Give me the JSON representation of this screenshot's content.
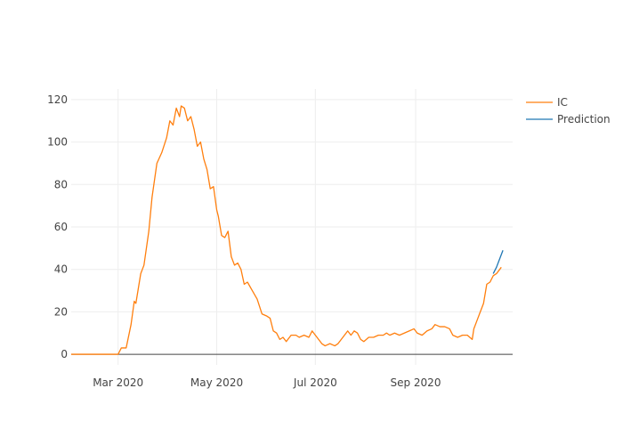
{
  "chart_data": {
    "type": "line",
    "title": "",
    "xlabel": "",
    "ylabel": "",
    "xlim": [
      "2020-02-01",
      "2020-10-31"
    ],
    "ylim": [
      -5,
      125
    ],
    "grid": true,
    "legend_position": "top-right",
    "x_ticks": [
      {
        "date": "2020-03-01",
        "label": "Mar 2020"
      },
      {
        "date": "2020-05-01",
        "label": "May 2020"
      },
      {
        "date": "2020-07-01",
        "label": "Jul 2020"
      },
      {
        "date": "2020-09-01",
        "label": "Sep 2020"
      }
    ],
    "y_ticks": [
      0,
      20,
      40,
      60,
      80,
      100,
      120
    ],
    "series": [
      {
        "name": "IC",
        "color": "#ff7f0e",
        "points": [
          [
            "2020-02-01",
            0
          ],
          [
            "2020-02-20",
            0
          ],
          [
            "2020-03-01",
            0
          ],
          [
            "2020-03-03",
            3
          ],
          [
            "2020-03-06",
            3
          ],
          [
            "2020-03-09",
            14
          ],
          [
            "2020-03-11",
            25
          ],
          [
            "2020-03-12",
            24
          ],
          [
            "2020-03-15",
            38
          ],
          [
            "2020-03-17",
            42
          ],
          [
            "2020-03-20",
            58
          ],
          [
            "2020-03-22",
            74
          ],
          [
            "2020-03-25",
            90
          ],
          [
            "2020-03-28",
            95
          ],
          [
            "2020-03-31",
            102
          ],
          [
            "2020-04-02",
            110
          ],
          [
            "2020-04-04",
            108
          ],
          [
            "2020-04-06",
            116
          ],
          [
            "2020-04-08",
            112
          ],
          [
            "2020-04-09",
            117
          ],
          [
            "2020-04-11",
            116
          ],
          [
            "2020-04-13",
            110
          ],
          [
            "2020-04-15",
            112
          ],
          [
            "2020-04-17",
            106
          ],
          [
            "2020-04-19",
            98
          ],
          [
            "2020-04-21",
            100
          ],
          [
            "2020-04-23",
            92
          ],
          [
            "2020-04-25",
            87
          ],
          [
            "2020-04-27",
            78
          ],
          [
            "2020-04-29",
            79
          ],
          [
            "2020-05-01",
            68
          ],
          [
            "2020-05-02",
            65
          ],
          [
            "2020-05-04",
            56
          ],
          [
            "2020-05-06",
            55
          ],
          [
            "2020-05-08",
            58
          ],
          [
            "2020-05-10",
            46
          ],
          [
            "2020-05-12",
            42
          ],
          [
            "2020-05-14",
            43
          ],
          [
            "2020-05-16",
            40
          ],
          [
            "2020-05-18",
            33
          ],
          [
            "2020-05-20",
            34
          ],
          [
            "2020-05-23",
            30
          ],
          [
            "2020-05-26",
            26
          ],
          [
            "2020-05-29",
            19
          ],
          [
            "2020-06-01",
            18
          ],
          [
            "2020-06-03",
            17
          ],
          [
            "2020-06-05",
            11
          ],
          [
            "2020-06-07",
            10
          ],
          [
            "2020-06-09",
            7
          ],
          [
            "2020-06-11",
            8
          ],
          [
            "2020-06-13",
            6
          ],
          [
            "2020-06-16",
            9
          ],
          [
            "2020-06-19",
            9
          ],
          [
            "2020-06-21",
            8
          ],
          [
            "2020-06-24",
            9
          ],
          [
            "2020-06-27",
            8
          ],
          [
            "2020-06-29",
            11
          ],
          [
            "2020-07-01",
            9
          ],
          [
            "2020-07-03",
            7
          ],
          [
            "2020-07-05",
            5
          ],
          [
            "2020-07-07",
            4
          ],
          [
            "2020-07-10",
            5
          ],
          [
            "2020-07-13",
            4
          ],
          [
            "2020-07-15",
            5
          ],
          [
            "2020-07-17",
            7
          ],
          [
            "2020-07-19",
            9
          ],
          [
            "2020-07-21",
            11
          ],
          [
            "2020-07-23",
            9
          ],
          [
            "2020-07-25",
            11
          ],
          [
            "2020-07-27",
            10
          ],
          [
            "2020-07-29",
            7
          ],
          [
            "2020-07-31",
            6
          ],
          [
            "2020-08-03",
            8
          ],
          [
            "2020-08-06",
            8
          ],
          [
            "2020-08-09",
            9
          ],
          [
            "2020-08-12",
            9
          ],
          [
            "2020-08-14",
            10
          ],
          [
            "2020-08-16",
            9
          ],
          [
            "2020-08-19",
            10
          ],
          [
            "2020-08-22",
            9
          ],
          [
            "2020-08-25",
            10
          ],
          [
            "2020-08-28",
            11
          ],
          [
            "2020-08-31",
            12
          ],
          [
            "2020-09-02",
            10
          ],
          [
            "2020-09-05",
            9
          ],
          [
            "2020-09-08",
            11
          ],
          [
            "2020-09-11",
            12
          ],
          [
            "2020-09-13",
            14
          ],
          [
            "2020-09-16",
            13
          ],
          [
            "2020-09-19",
            13
          ],
          [
            "2020-09-22",
            12
          ],
          [
            "2020-09-24",
            9
          ],
          [
            "2020-09-27",
            8
          ],
          [
            "2020-09-30",
            9
          ],
          [
            "2020-10-03",
            9
          ],
          [
            "2020-10-06",
            7
          ],
          [
            "2020-10-07",
            12
          ],
          [
            "2020-10-09",
            16
          ],
          [
            "2020-10-11",
            20
          ],
          [
            "2020-10-13",
            24
          ],
          [
            "2020-10-15",
            33
          ],
          [
            "2020-10-17",
            34
          ],
          [
            "2020-10-19",
            37
          ],
          [
            "2020-10-21",
            38
          ],
          [
            "2020-10-23",
            40
          ],
          [
            "2020-10-24",
            41
          ]
        ]
      },
      {
        "name": "Prediction",
        "color": "#1f77b4",
        "points": [
          [
            "2020-10-19",
            38
          ],
          [
            "2020-10-21",
            41
          ],
          [
            "2020-10-23",
            45
          ],
          [
            "2020-10-25",
            49
          ]
        ]
      }
    ]
  }
}
